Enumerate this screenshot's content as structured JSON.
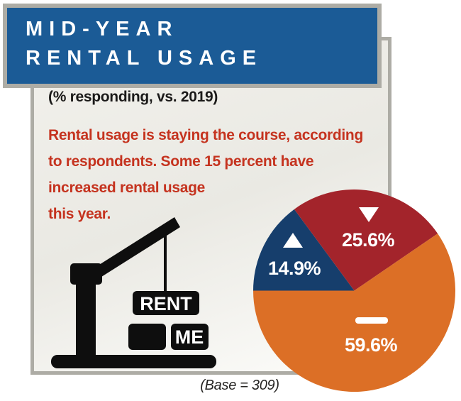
{
  "title_box": {
    "line1": "MID-YEAR",
    "line2": "RENTAL USAGE"
  },
  "panel": {
    "subtitle": "(% responding, vs. 2019)",
    "note_lines": [
      "Rental usage is staying the course, according",
      "to respondents. Some 15 percent have",
      "increased rental usage",
      "this year."
    ],
    "crane_sign_top": "RENT",
    "crane_sign_bottom": "ME"
  },
  "base_note": "(Base = 309)",
  "colors": {
    "header_bg": "#1b5b96",
    "border_gray": "#adaca5",
    "note_red": "#c5331f",
    "pie_blue": "#163e6c",
    "pie_red": "#a3242b",
    "pie_orange": "#dc6f26"
  },
  "chart_data": {
    "type": "pie",
    "title": "MID-YEAR RENTAL USAGE",
    "subtitle": "(% responding, vs. 2019)",
    "base_note": "(Base = 309)",
    "start_angle_deg": 270,
    "direction": "clockwise",
    "slices": [
      {
        "marker": "up-triangle",
        "display": "14.9%",
        "value": 14.9,
        "color": "#163e6c"
      },
      {
        "marker": "down-triangle",
        "display": "25.6%",
        "value": 25.6,
        "color": "#a3242b"
      },
      {
        "marker": "flat-dash",
        "display": "59.6%",
        "value": 59.6,
        "color": "#dc6f26"
      }
    ]
  }
}
